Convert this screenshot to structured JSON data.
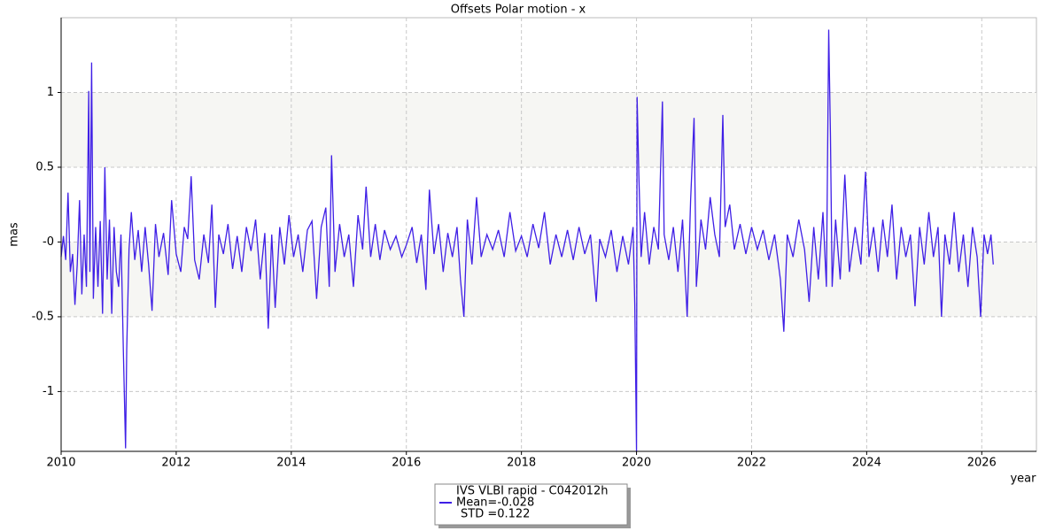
{
  "chart_data": {
    "type": "line",
    "title": "Offsets Polar motion - x",
    "xlabel": "year",
    "ylabel": "mas",
    "xlim": [
      2010,
      2026.95
    ],
    "ylim": [
      -1.4,
      1.5
    ],
    "xticks": [
      2010,
      2012,
      2014,
      2016,
      2018,
      2020,
      2022,
      2024,
      2026
    ],
    "yticks": [
      -1,
      -0.5,
      {
        "value": 0,
        "label": "-0"
      },
      0.5,
      1
    ],
    "bands": [
      [
        0.5,
        1
      ],
      [
        -0.5,
        0
      ]
    ],
    "grid": true,
    "legend_stats": [
      "Mean=-0.028",
      "STD =0.122"
    ],
    "x": [
      2010.0,
      2010.04,
      2010.08,
      2010.12,
      2010.16,
      2010.2,
      2010.24,
      2010.28,
      2010.32,
      2010.36,
      2010.4,
      2010.44,
      2010.48,
      2010.5,
      2010.53,
      2010.56,
      2010.6,
      2010.64,
      2010.68,
      2010.72,
      2010.76,
      2010.8,
      2010.84,
      2010.88,
      2010.92,
      2010.96,
      2011.0,
      2011.04,
      2011.08,
      2011.12,
      2011.14,
      2011.18,
      2011.22,
      2011.28,
      2011.34,
      2011.4,
      2011.46,
      2011.52,
      2011.58,
      2011.64,
      2011.7,
      2011.78,
      2011.86,
      2011.92,
      2012.0,
      2012.08,
      2012.14,
      2012.2,
      2012.26,
      2012.32,
      2012.4,
      2012.48,
      2012.56,
      2012.62,
      2012.68,
      2012.74,
      2012.82,
      2012.9,
      2012.98,
      2013.06,
      2013.14,
      2013.22,
      2013.3,
      2013.38,
      2013.46,
      2013.54,
      2013.6,
      2013.66,
      2013.72,
      2013.8,
      2013.88,
      2013.96,
      2014.04,
      2014.12,
      2014.2,
      2014.28,
      2014.36,
      2014.44,
      2014.52,
      2014.6,
      2014.66,
      2014.7,
      2014.76,
      2014.84,
      2014.92,
      2015.0,
      2015.08,
      2015.16,
      2015.24,
      2015.3,
      2015.38,
      2015.46,
      2015.54,
      2015.62,
      2015.72,
      2015.82,
      2015.92,
      2016.0,
      2016.1,
      2016.18,
      2016.26,
      2016.34,
      2016.4,
      2016.48,
      2016.56,
      2016.64,
      2016.72,
      2016.8,
      2016.88,
      2016.94,
      2017.0,
      2017.06,
      2017.14,
      2017.22,
      2017.3,
      2017.4,
      2017.5,
      2017.6,
      2017.7,
      2017.8,
      2017.9,
      2018.0,
      2018.1,
      2018.2,
      2018.3,
      2018.4,
      2018.5,
      2018.6,
      2018.7,
      2018.8,
      2018.9,
      2019.0,
      2019.1,
      2019.2,
      2019.3,
      2019.36,
      2019.46,
      2019.56,
      2019.66,
      2019.76,
      2019.86,
      2019.94,
      2019.97,
      2019.99,
      2020.0,
      2020.01,
      2020.04,
      2020.08,
      2020.14,
      2020.22,
      2020.3,
      2020.38,
      2020.45,
      2020.48,
      2020.56,
      2020.64,
      2020.72,
      2020.8,
      2020.88,
      2020.94,
      2021.0,
      2021.04,
      2021.12,
      2021.2,
      2021.28,
      2021.36,
      2021.44,
      2021.5,
      2021.54,
      2021.62,
      2021.7,
      2021.8,
      2021.9,
      2022.0,
      2022.1,
      2022.2,
      2022.3,
      2022.4,
      2022.5,
      2022.56,
      2022.62,
      2022.72,
      2022.82,
      2022.92,
      2023.0,
      2023.08,
      2023.16,
      2023.24,
      2023.3,
      2023.34,
      2023.37,
      2023.4,
      2023.46,
      2023.54,
      2023.62,
      2023.7,
      2023.8,
      2023.9,
      2023.98,
      2024.04,
      2024.12,
      2024.2,
      2024.28,
      2024.36,
      2024.44,
      2024.52,
      2024.6,
      2024.68,
      2024.76,
      2024.84,
      2024.92,
      2025.0,
      2025.08,
      2025.16,
      2025.24,
      2025.3,
      2025.36,
      2025.44,
      2025.52,
      2025.6,
      2025.68,
      2025.76,
      2025.84,
      2025.92,
      2025.98,
      2026.04,
      2026.1,
      2026.16,
      2026.2
    ],
    "series": [
      {
        "name": "IVS VLBI rapid - C042012h",
        "color": "#3f1fe6",
        "values": [
          -0.1,
          0.04,
          -0.12,
          0.33,
          -0.2,
          -0.08,
          -0.42,
          -0.15,
          0.28,
          -0.35,
          0.05,
          -0.3,
          1.01,
          -0.2,
          1.2,
          -0.38,
          0.1,
          -0.3,
          0.14,
          -0.48,
          0.5,
          -0.25,
          0.15,
          -0.48,
          0.1,
          -0.2,
          -0.3,
          0.05,
          -0.7,
          -1.38,
          -0.72,
          -0.05,
          0.2,
          -0.12,
          0.08,
          -0.2,
          0.1,
          -0.15,
          -0.46,
          0.12,
          -0.1,
          0.06,
          -0.22,
          0.28,
          -0.08,
          -0.2,
          0.1,
          0.02,
          0.44,
          -0.12,
          -0.25,
          0.05,
          -0.14,
          0.25,
          -0.44,
          0.05,
          -0.08,
          0.12,
          -0.18,
          0.04,
          -0.2,
          0.1,
          -0.06,
          0.15,
          -0.25,
          0.06,
          -0.58,
          0.05,
          -0.44,
          0.1,
          -0.15,
          0.18,
          -0.1,
          0.05,
          -0.2,
          0.08,
          0.14,
          -0.38,
          0.1,
          0.23,
          -0.3,
          0.58,
          -0.2,
          0.12,
          -0.1,
          0.05,
          -0.3,
          0.18,
          -0.05,
          0.37,
          -0.1,
          0.12,
          -0.12,
          0.08,
          -0.05,
          0.04,
          -0.1,
          -0.02,
          0.1,
          -0.14,
          0.05,
          -0.32,
          0.35,
          -0.08,
          0.12,
          -0.2,
          0.06,
          -0.1,
          0.1,
          -0.25,
          -0.5,
          0.15,
          -0.15,
          0.3,
          -0.1,
          0.05,
          -0.05,
          0.08,
          -0.1,
          0.2,
          -0.06,
          0.04,
          -0.1,
          0.12,
          -0.04,
          0.2,
          -0.15,
          0.05,
          -0.1,
          0.08,
          -0.12,
          0.1,
          -0.08,
          0.05,
          -0.4,
          0.02,
          -0.1,
          0.08,
          -0.2,
          0.04,
          -0.15,
          0.1,
          -0.42,
          -1.06,
          -1.4,
          0.97,
          0.45,
          -0.1,
          0.2,
          -0.15,
          0.1,
          -0.05,
          0.94,
          0.05,
          -0.12,
          0.1,
          -0.2,
          0.15,
          -0.5,
          0.28,
          0.83,
          -0.3,
          0.15,
          -0.05,
          0.3,
          0.05,
          -0.1,
          0.85,
          0.1,
          0.25,
          -0.05,
          0.12,
          -0.08,
          0.1,
          -0.05,
          0.08,
          -0.12,
          0.05,
          -0.25,
          -0.6,
          0.05,
          -0.1,
          0.15,
          -0.05,
          -0.4,
          0.1,
          -0.25,
          0.2,
          -0.3,
          1.42,
          0.72,
          -0.3,
          0.15,
          -0.25,
          0.45,
          -0.2,
          0.1,
          -0.15,
          0.47,
          -0.1,
          0.1,
          -0.2,
          0.15,
          -0.1,
          0.25,
          -0.25,
          0.1,
          -0.1,
          0.05,
          -0.43,
          0.1,
          -0.15,
          0.2,
          -0.1,
          0.1,
          -0.5,
          0.05,
          -0.15,
          0.2,
          -0.2,
          0.05,
          -0.3,
          0.1,
          -0.1,
          -0.5,
          0.05,
          -0.08,
          0.05,
          -0.15
        ]
      }
    ]
  }
}
